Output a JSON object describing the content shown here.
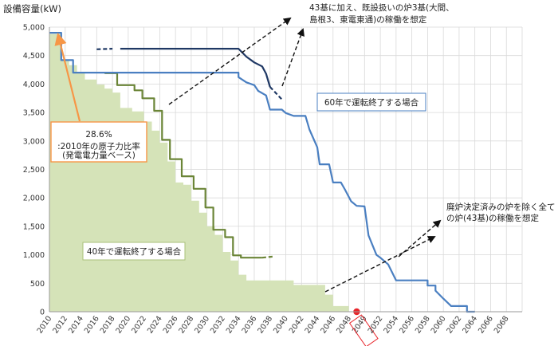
{
  "chart_data": {
    "type": "line",
    "ylabel": "設備容量(kW)",
    "ylim": [
      0,
      5000
    ],
    "xlim": [
      2010,
      2070
    ],
    "yticks": [
      "0",
      "500",
      "1,000",
      "1,500",
      "2,000",
      "2,500",
      "3,000",
      "3,500",
      "4,000",
      "4,500",
      "5,000"
    ],
    "xticks": [
      "2010",
      "2012",
      "2014",
      "2016",
      "2018",
      "2020",
      "2022",
      "2024",
      "2026",
      "2028",
      "2030",
      "2032",
      "2034",
      "2036",
      "2038",
      "2040",
      "2042",
      "2044",
      "2046",
      "2048",
      "2049",
      "2052",
      "2054",
      "2056",
      "2058",
      "2060",
      "2062",
      "2064",
      "2066",
      "2068"
    ],
    "grid": true,
    "highlight_year": {
      "label": "2049",
      "x": 2049,
      "y": 0,
      "color": "#e8252b"
    },
    "series": [
      {
        "name": "40年で運転終了する場合",
        "style": "area",
        "color": "#d5e3b8",
        "points": [
          [
            2010,
            4880
          ],
          [
            2011.5,
            4880
          ],
          [
            2011.5,
            4420
          ],
          [
            2012.5,
            4420
          ],
          [
            2012.5,
            4330
          ],
          [
            2013.5,
            4330
          ],
          [
            2013.5,
            4200
          ],
          [
            2014.5,
            4200
          ],
          [
            2014.5,
            4080
          ],
          [
            2016,
            4080
          ],
          [
            2016,
            3990
          ],
          [
            2017,
            3990
          ],
          [
            2017,
            3920
          ],
          [
            2018,
            3920
          ],
          [
            2018,
            3850
          ],
          [
            2019,
            3850
          ],
          [
            2019,
            3580
          ],
          [
            2020.5,
            3580
          ],
          [
            2020.5,
            3520
          ],
          [
            2022,
            3520
          ],
          [
            2022,
            3340
          ],
          [
            2023,
            3340
          ],
          [
            2023,
            3180
          ],
          [
            2024,
            3180
          ],
          [
            2024,
            2970
          ],
          [
            2025,
            2970
          ],
          [
            2025,
            2640
          ],
          [
            2026,
            2640
          ],
          [
            2026,
            2270
          ],
          [
            2027,
            2270
          ],
          [
            2027,
            2230
          ],
          [
            2028,
            2230
          ],
          [
            2028,
            1950
          ],
          [
            2029,
            1950
          ],
          [
            2029,
            1740
          ],
          [
            2030,
            1740
          ],
          [
            2030,
            1500
          ],
          [
            2031,
            1500
          ],
          [
            2031,
            1350
          ],
          [
            2032,
            1350
          ],
          [
            2032,
            1050
          ],
          [
            2033,
            1050
          ],
          [
            2033,
            900
          ],
          [
            2034,
            900
          ],
          [
            2034,
            650
          ],
          [
            2035,
            650
          ],
          [
            2035,
            550
          ],
          [
            2041,
            550
          ],
          [
            2041,
            470
          ],
          [
            2045,
            470
          ],
          [
            2045,
            300
          ],
          [
            2046,
            300
          ],
          [
            2046,
            100
          ],
          [
            2048,
            100
          ],
          [
            2048,
            0
          ]
        ]
      },
      {
        "name": "43基に加え、既設扱いの炉3基(大間、島根3、東電東通)の稼働を想定",
        "style": "line",
        "color": "#6b8537",
        "points": [
          [
            2017,
            4190
          ],
          [
            2018.6,
            4190
          ],
          [
            2018.6,
            3980
          ],
          [
            2020.8,
            3980
          ],
          [
            2020.8,
            3890
          ],
          [
            2021.8,
            3890
          ],
          [
            2021.8,
            3750
          ],
          [
            2023.3,
            3750
          ],
          [
            2023.3,
            3530
          ],
          [
            2024.3,
            3530
          ],
          [
            2024.3,
            3020
          ],
          [
            2025.3,
            3020
          ],
          [
            2025.3,
            2680
          ],
          [
            2026.8,
            2680
          ],
          [
            2026.8,
            2380
          ],
          [
            2028.3,
            2380
          ],
          [
            2028.3,
            2160
          ],
          [
            2029.8,
            2160
          ],
          [
            2029.8,
            1830
          ],
          [
            2030.8,
            1830
          ],
          [
            2030.8,
            1440
          ],
          [
            2032.3,
            1440
          ],
          [
            2032.3,
            1310
          ],
          [
            2033.3,
            1310
          ],
          [
            2033.3,
            990
          ],
          [
            2034.3,
            990
          ],
          [
            2034.3,
            950
          ],
          [
            2037,
            950
          ]
        ],
        "dashed_tail": [
          [
            2037,
            950
          ],
          [
            2038.5,
            970
          ]
        ]
      },
      {
        "name": "60年で運転終了する場合",
        "style": "line",
        "color": "#4a7fc1",
        "points": [
          [
            2010,
            4900
          ],
          [
            2011.5,
            4900
          ],
          [
            2011.5,
            4420
          ],
          [
            2013,
            4420
          ],
          [
            2013,
            4200
          ],
          [
            2034,
            4200
          ],
          [
            2034,
            4120
          ],
          [
            2035,
            4030
          ],
          [
            2036,
            3980
          ],
          [
            2036.5,
            3880
          ],
          [
            2037.5,
            3800
          ],
          [
            2038,
            3550
          ],
          [
            2039.5,
            3550
          ],
          [
            2040,
            3490
          ],
          [
            2041,
            3440
          ],
          [
            2042.5,
            3440
          ],
          [
            2043,
            3200
          ],
          [
            2044,
            2890
          ],
          [
            2044.3,
            2590
          ],
          [
            2045.5,
            2590
          ],
          [
            2046,
            2270
          ],
          [
            2047,
            2270
          ],
          [
            2047.5,
            2150
          ],
          [
            2048.3,
            1940
          ],
          [
            2049,
            1860
          ],
          [
            2050,
            1850
          ],
          [
            2050.5,
            1340
          ],
          [
            2051.5,
            1000
          ],
          [
            2052,
            950
          ],
          [
            2053,
            830
          ],
          [
            2054,
            550
          ],
          [
            2058,
            550
          ],
          [
            2058,
            460
          ],
          [
            2059,
            460
          ],
          [
            2059,
            370
          ],
          [
            2060,
            230
          ],
          [
            2061,
            100
          ],
          [
            2063,
            100
          ],
          [
            2063,
            0
          ],
          [
            2064,
            0
          ]
        ]
      },
      {
        "name": "43基に加え、既設扱いの炉3基(大間、島根3、東電東通)の稼働を想定",
        "style": "line",
        "color": "#1f3864",
        "points": [
          [
            2019,
            4620
          ],
          [
            2034,
            4620
          ],
          [
            2035,
            4480
          ],
          [
            2036,
            4380
          ],
          [
            2037,
            4310
          ],
          [
            2037.5,
            4180
          ],
          [
            2038,
            3950
          ]
        ],
        "dashed_head": [
          [
            2016,
            4610
          ],
          [
            2018,
            4620
          ]
        ],
        "dashed_tail": [
          [
            2038,
            3950
          ],
          [
            2039.5,
            3730
          ]
        ]
      }
    ],
    "annotations": [
      {
        "id": "ratio",
        "value": "28.6%",
        "sub": [
          ":2010年の原子力比率",
          "(発電電力量ベース)"
        ],
        "box_color": "#f79646"
      },
      {
        "id": "label40",
        "text": "40年で運転終了する場合"
      },
      {
        "id": "label60",
        "text": "60年で運転終了する場合"
      },
      {
        "id": "note-top",
        "lines": [
          "43基に加え、既設扱いの炉3基(大間、",
          "島根3、東電東通)の稼働を想定"
        ]
      },
      {
        "id": "note-right",
        "lines": [
          "廃炉決定済みの炉を除く全て",
          "の炉(43基)の稼働を想定"
        ]
      }
    ]
  }
}
